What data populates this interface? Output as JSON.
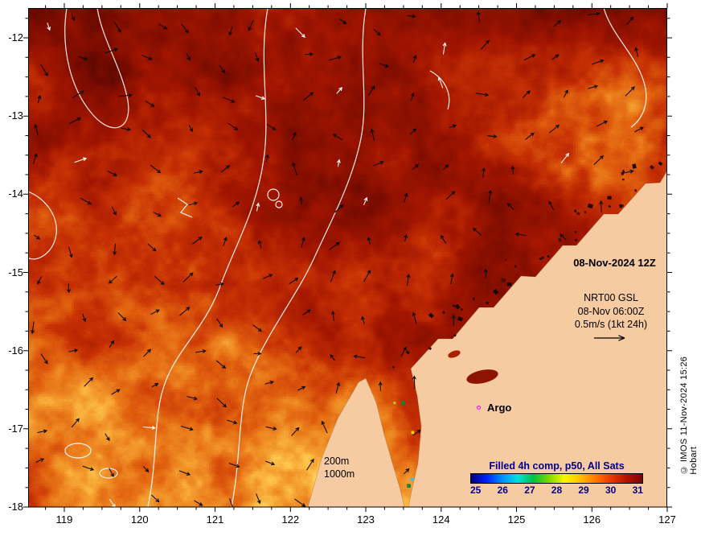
{
  "figure": {
    "credit": "© IMOS 11-Nov-2024 15:26 Hobart"
  },
  "annotations": {
    "datetime": "08-Nov-2024 12Z",
    "model_line1": "NRT00 GSL",
    "model_line2": "08-Nov 06:00Z",
    "model_line3": "0.5m/s (1kt 24h)",
    "argo": "Argo",
    "depth_200": "200m",
    "depth_1000": "1000m"
  },
  "colorbar": {
    "title": "Filled 4h comp, p50, All Sats",
    "ticks": [
      "25",
      "26",
      "27",
      "28",
      "29",
      "30",
      "31"
    ],
    "text_color": "#00008b",
    "gradient": [
      "#000080",
      "#0020ff",
      "#0090ff",
      "#00e0e0",
      "#00c040",
      "#80d800",
      "#f8f800",
      "#ffc000",
      "#ff7800",
      "#e83800",
      "#b01400",
      "#780800"
    ]
  },
  "axes": {
    "lon_ticks": [
      119,
      120,
      121,
      122,
      123,
      124,
      125,
      126,
      127
    ],
    "lat_ticks": [
      -12,
      -13,
      -14,
      -15,
      -16,
      -17,
      -18
    ]
  },
  "map": {
    "land_color": "#f6cba2",
    "contour_color": "#ffffff",
    "marker_color": "#ff00ff"
  }
}
